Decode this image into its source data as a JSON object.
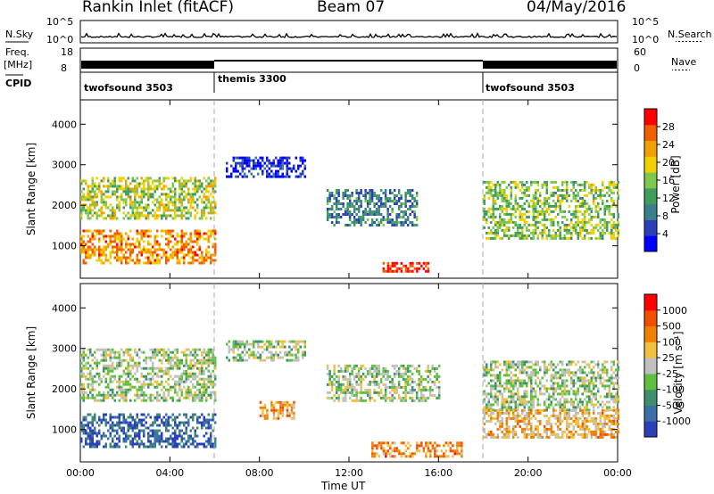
{
  "header": {
    "station": "Rankin Inlet (fitACF)",
    "beam": "Beam 07",
    "date": "04/May/2016"
  },
  "top_panels": {
    "nsky_label": "N.Sky",
    "nsearch_label": "N.Search",
    "nsky_ticks": [
      "10^5",
      "10^0"
    ],
    "nsearch_ticks": [
      "10^5",
      "10^0"
    ],
    "freq_label": "Freq.",
    "freq_unit": "[MHz]",
    "freq_ticks": [
      "18",
      "8"
    ],
    "nave_label": "Nave",
    "nave_ticks": [
      "60",
      "0"
    ],
    "cpid_label": "CPID",
    "modes": [
      {
        "name": "twofsound 3503",
        "start": 0,
        "end": 6
      },
      {
        "name": "themis 3300",
        "start": 6,
        "end": 18
      },
      {
        "name": "twofsound 3503",
        "start": 18,
        "end": 24
      }
    ]
  },
  "chart_data": [
    {
      "type": "heatmap",
      "name": "Power",
      "ylabel": "Slant Range [km]",
      "xlabel": "Time UT",
      "xlim": [
        0,
        24
      ],
      "ylim": [
        200,
        4600
      ],
      "yticks": [
        "1000",
        "2000",
        "3000",
        "4000"
      ],
      "xticks": [
        "00:00",
        "04:00",
        "08:00",
        "12:00",
        "16:00",
        "20:00",
        "00:00"
      ],
      "colorbar": {
        "label": "Power [dB]",
        "ticks": [
          "4",
          "8",
          "12",
          "16",
          "20",
          "24",
          "28"
        ],
        "colors": [
          "#0000ff",
          "#2a3fb8",
          "#3c7f8c",
          "#3f9e5e",
          "#7ec850",
          "#f0d000",
          "#f0a000",
          "#f06000",
          "#ff0000"
        ]
      },
      "regions": [
        {
          "t0": 0,
          "t1": 6,
          "r0": 1700,
          "r1": 2700,
          "level": 0.55
        },
        {
          "t0": 0,
          "t1": 6,
          "r0": 600,
          "r1": 1400,
          "level": 0.75
        },
        {
          "t0": 6.5,
          "t1": 10,
          "r0": 2700,
          "r1": 3200,
          "level": 0.1
        },
        {
          "t0": 11,
          "t1": 15,
          "r0": 1500,
          "r1": 2400,
          "level": 0.3
        },
        {
          "t0": 13.5,
          "t1": 15.5,
          "r0": 350,
          "r1": 600,
          "level": 0.95
        },
        {
          "t0": 18,
          "t1": 24,
          "r0": 1200,
          "r1": 2600,
          "level": 0.5
        }
      ]
    },
    {
      "type": "heatmap",
      "name": "Velocity",
      "ylabel": "Slant Range [km]",
      "xlabel": "Time UT",
      "xlim": [
        0,
        24
      ],
      "ylim": [
        200,
        4600
      ],
      "yticks": [
        "1000",
        "2000",
        "3000",
        "4000"
      ],
      "xticks": [
        "00:00",
        "04:00",
        "08:00",
        "12:00",
        "16:00",
        "20:00",
        "00:00"
      ],
      "colorbar": {
        "label": "Velocity [m s⁻¹]",
        "ticks": [
          "1000",
          "500",
          "100",
          "25",
          "-25",
          "-100",
          "-500",
          "-1000"
        ],
        "colors": [
          "#2a3fb8",
          "#3c6fa8",
          "#3f8f6e",
          "#5fbf40",
          "#c0c0c0",
          "#f0c040",
          "#f08000",
          "#f05000",
          "#ff0000"
        ]
      },
      "regions": [
        {
          "t0": 0,
          "t1": 6,
          "r0": 1700,
          "r1": 3000,
          "level": 0.45
        },
        {
          "t0": 0,
          "t1": 6,
          "r0": 600,
          "r1": 1400,
          "level": 0.15
        },
        {
          "t0": 6.5,
          "t1": 10,
          "r0": 2700,
          "r1": 3200,
          "level": 0.45
        },
        {
          "t0": 8,
          "t1": 9.5,
          "r0": 1300,
          "r1": 1700,
          "level": 0.7
        },
        {
          "t0": 11,
          "t1": 16,
          "r0": 1700,
          "r1": 2600,
          "level": 0.45
        },
        {
          "t0": 13,
          "t1": 17,
          "r0": 350,
          "r1": 700,
          "level": 0.72
        },
        {
          "t0": 18,
          "t1": 24,
          "r0": 1500,
          "r1": 2700,
          "level": 0.45
        },
        {
          "t0": 18,
          "t1": 24,
          "r0": 800,
          "r1": 1500,
          "level": 0.62
        }
      ]
    }
  ]
}
